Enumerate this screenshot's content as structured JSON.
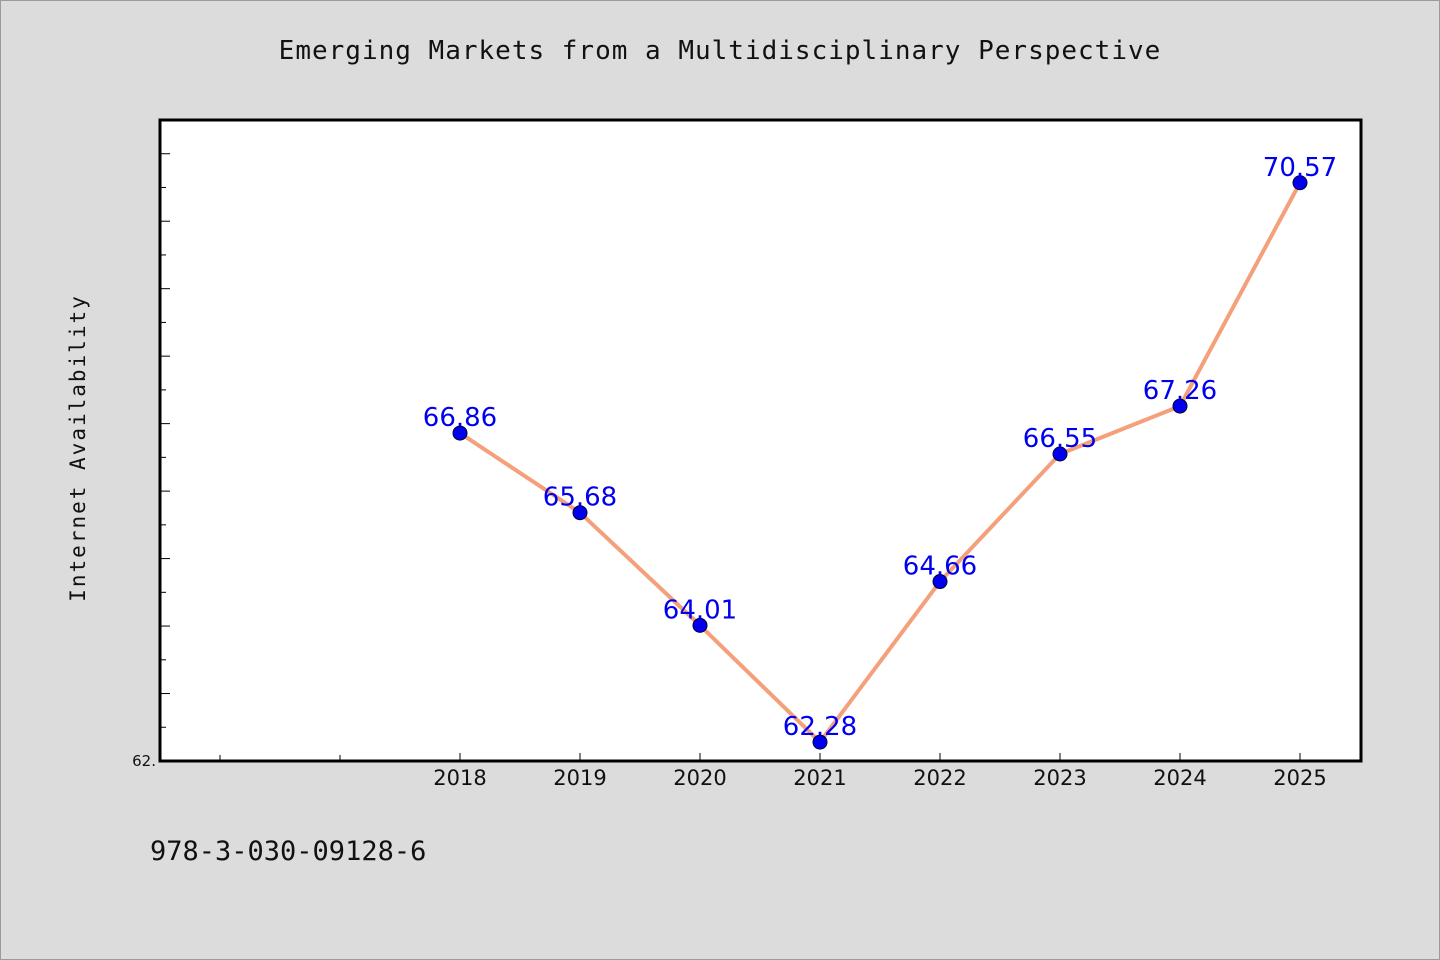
{
  "page": {
    "background": "#dcdcdc",
    "isbn": "978-3-030-09128-6"
  },
  "chart_data": {
    "type": "line",
    "title": "Emerging Markets from a Multidisciplinary Perspective",
    "xlabel": "",
    "ylabel": "Internet Availability",
    "x": [
      "2018",
      "2019",
      "2020",
      "2021",
      "2022",
      "2023",
      "2024",
      "2025"
    ],
    "series": [
      {
        "values": [
          66.86,
          65.68,
          64.01,
          62.28,
          64.66,
          66.55,
          67.26,
          70.57
        ],
        "labels": [
          "66.86",
          "65.68",
          "64.01",
          "62.28",
          "64.66",
          "66.55",
          "67.26",
          "70.57"
        ],
        "line_color": "#f4a07a",
        "marker_color": "#0000ee"
      }
    ],
    "ylim": [
      62.0,
      71.5
    ],
    "y_tick_label": "62.",
    "grid": false,
    "legend": "none"
  }
}
